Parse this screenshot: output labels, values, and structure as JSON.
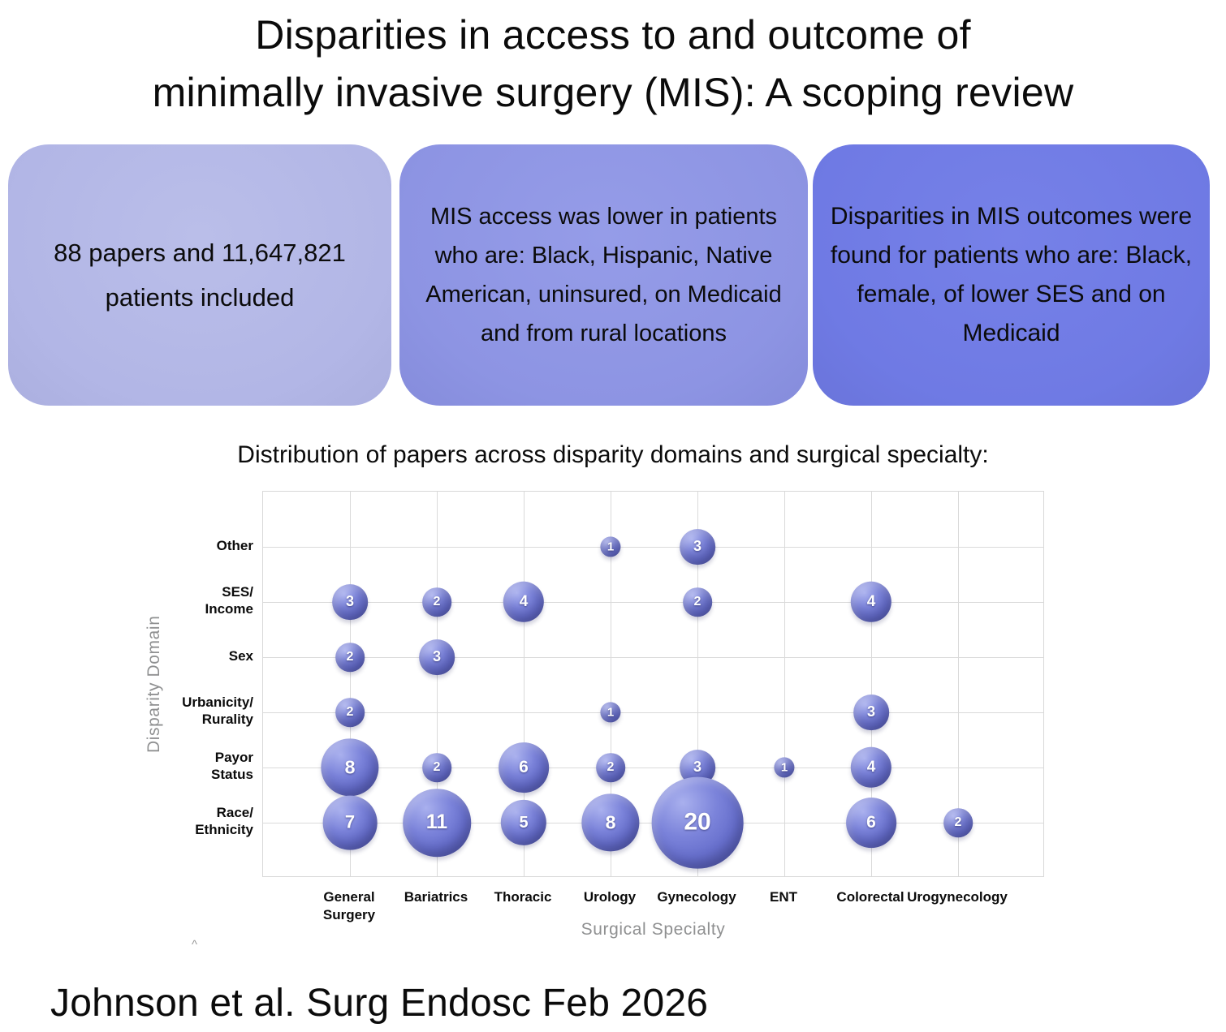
{
  "title_lines": [
    "Disparities in access to and outcome of",
    "minimally invasive surgery (MIS): A scoping review"
  ],
  "summary_boxes": [
    {
      "text": "88 papers and 11,647,821 patients included",
      "fill_color": "#b2b6e6"
    },
    {
      "text": "MIS access was lower in patients who are: Black, Hispanic, Native American, uninsured, on Medicaid and from rural locations",
      "fill_color": "#8d94e3"
    },
    {
      "text": "Disparities in MIS outcomes were found for patients who are: Black, female, of lower SES and on Medicaid",
      "fill_color": "#6f7ae4"
    }
  ],
  "chart_data": {
    "type": "scatter",
    "subtype": "bubble",
    "title": "Distribution of papers across disparity domains and surgical specialty:",
    "xlabel": "Surgical Specialty",
    "ylabel": "Disparity Domain",
    "grid": true,
    "x_axis": "categorical",
    "y_axis": "categorical",
    "bubble_color": "#6870cd",
    "bubble_size_rule": "area proportional to number of papers",
    "x_categories": [
      {
        "name": "General Surgery",
        "label_lines": [
          "General",
          "Surgery"
        ]
      },
      {
        "name": "Bariatrics",
        "label_lines": [
          "Bariatrics"
        ]
      },
      {
        "name": "Thoracic",
        "label_lines": [
          "Thoracic"
        ]
      },
      {
        "name": "Urology",
        "label_lines": [
          "Urology"
        ]
      },
      {
        "name": "Gynecology",
        "label_lines": [
          "Gynecology"
        ]
      },
      {
        "name": "ENT",
        "label_lines": [
          "ENT"
        ]
      },
      {
        "name": "Colorectal",
        "label_lines": [
          "Colorectal"
        ]
      },
      {
        "name": "Urogynecology",
        "label_lines": [
          "Urogynecology"
        ]
      }
    ],
    "rows": [
      {
        "domain": "Other",
        "label_lines": [
          "Other"
        ],
        "values": [
          null,
          null,
          null,
          1,
          3,
          null,
          null,
          null
        ]
      },
      {
        "domain": "SES/Income",
        "label_lines": [
          "SES/",
          "Income"
        ],
        "values": [
          3,
          2,
          4,
          null,
          2,
          null,
          4,
          null
        ]
      },
      {
        "domain": "Sex",
        "label_lines": [
          "Sex"
        ],
        "values": [
          2,
          3,
          null,
          null,
          null,
          null,
          null,
          null
        ]
      },
      {
        "domain": "Urbanicity/Rurality",
        "label_lines": [
          "Urbanicity/",
          "Rurality"
        ],
        "values": [
          2,
          null,
          null,
          1,
          null,
          null,
          3,
          null
        ]
      },
      {
        "domain": "Payor Status",
        "label_lines": [
          "Payor",
          "Status"
        ],
        "values": [
          8,
          2,
          6,
          2,
          3,
          1,
          4,
          null
        ]
      },
      {
        "domain": "Race/Ethnicity",
        "label_lines": [
          "Race/",
          "Ethnicity"
        ],
        "values": [
          7,
          11,
          5,
          8,
          20,
          null,
          6,
          2
        ]
      }
    ]
  },
  "stray_mark": "^",
  "citation": "Johnson et al. Surg Endosc Feb 2026"
}
